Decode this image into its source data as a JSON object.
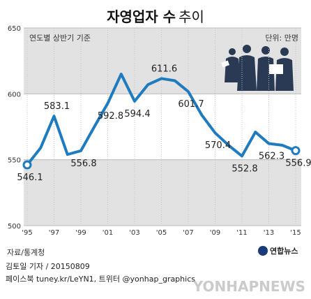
{
  "header": {
    "title_bold": "자영업자 수",
    "title_regular": "추이"
  },
  "chart_data": {
    "type": "line",
    "subtitle": "연도별 상반기 기준",
    "unit_label": "단위: 만명",
    "x": [
      "95",
      "96",
      "97",
      "98",
      "99",
      "00",
      "01",
      "02",
      "03",
      "04",
      "05",
      "06",
      "07",
      "08",
      "09",
      "10",
      "11",
      "12",
      "13",
      "14",
      "15"
    ],
    "x_tick_labels": [
      "'95",
      "'97",
      "'99",
      "'01",
      "'03",
      "'05",
      "'07",
      "'09",
      "'11",
      "'13",
      "'15"
    ],
    "series": [
      {
        "values": [
          546.1,
          559.0,
          583.1,
          554.0,
          556.8,
          575.0,
          592.8,
          615.0,
          594.4,
          607.0,
          611.6,
          610.0,
          601.7,
          584.0,
          570.4,
          561.0,
          552.8,
          571.0,
          562.3,
          561.0,
          556.9
        ]
      }
    ],
    "labels": [
      {
        "index": 0,
        "text": "546.1"
      },
      {
        "index": 2,
        "text": "583.1"
      },
      {
        "index": 4,
        "text": "556.8"
      },
      {
        "index": 6,
        "text": "592.8"
      },
      {
        "index": 8,
        "text": "594.4"
      },
      {
        "index": 10,
        "text": "611.6"
      },
      {
        "index": 12,
        "text": "601.7"
      },
      {
        "index": 14,
        "text": "570.4"
      },
      {
        "index": 16,
        "text": "552.8"
      },
      {
        "index": 18,
        "text": "562.3"
      },
      {
        "index": 20,
        "text": "556.9"
      }
    ],
    "y_ticks": [
      "650",
      "600",
      "550",
      "500"
    ],
    "ylim": [
      500,
      650
    ],
    "line_color": "#1f7bbf",
    "band_color": "#e2e2e2"
  },
  "source": "자료/통계청",
  "logo": "연합뉴스",
  "footer": {
    "line1": "김토일 기자 / 20150809",
    "line2": "페이스북 tuney.kr/LeYN1, 트위터 @yonhap_graphics"
  },
  "watermark": "YONHAPNEWS"
}
